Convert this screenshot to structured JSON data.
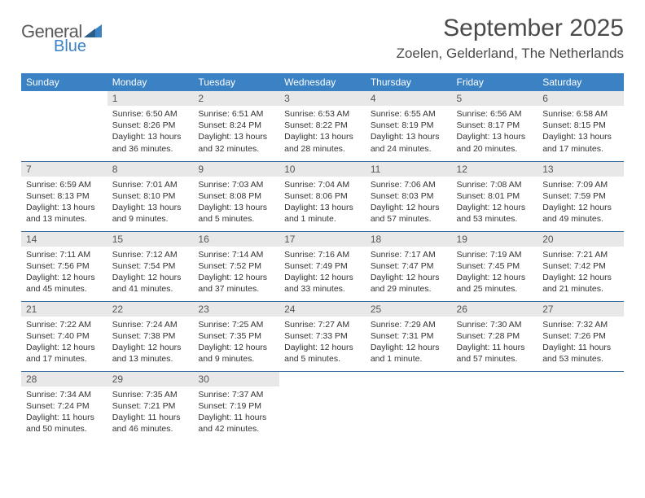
{
  "brand": {
    "word1": "General",
    "word2": "Blue",
    "color_blue": "#3b82c4",
    "color_gray": "#5a5a5a"
  },
  "title": "September 2025",
  "location": "Zoelen, Gelderland, The Netherlands",
  "header_bg": "#3b82c4",
  "daynum_bg": "#e8e8e8",
  "border_color": "#3b6fa0",
  "weekdays": [
    "Sunday",
    "Monday",
    "Tuesday",
    "Wednesday",
    "Thursday",
    "Friday",
    "Saturday"
  ],
  "weeks": [
    [
      null,
      {
        "n": "1",
        "sr": "Sunrise: 6:50 AM",
        "ss": "Sunset: 8:26 PM",
        "dl": "Daylight: 13 hours and 36 minutes."
      },
      {
        "n": "2",
        "sr": "Sunrise: 6:51 AM",
        "ss": "Sunset: 8:24 PM",
        "dl": "Daylight: 13 hours and 32 minutes."
      },
      {
        "n": "3",
        "sr": "Sunrise: 6:53 AM",
        "ss": "Sunset: 8:22 PM",
        "dl": "Daylight: 13 hours and 28 minutes."
      },
      {
        "n": "4",
        "sr": "Sunrise: 6:55 AM",
        "ss": "Sunset: 8:19 PM",
        "dl": "Daylight: 13 hours and 24 minutes."
      },
      {
        "n": "5",
        "sr": "Sunrise: 6:56 AM",
        "ss": "Sunset: 8:17 PM",
        "dl": "Daylight: 13 hours and 20 minutes."
      },
      {
        "n": "6",
        "sr": "Sunrise: 6:58 AM",
        "ss": "Sunset: 8:15 PM",
        "dl": "Daylight: 13 hours and 17 minutes."
      }
    ],
    [
      {
        "n": "7",
        "sr": "Sunrise: 6:59 AM",
        "ss": "Sunset: 8:13 PM",
        "dl": "Daylight: 13 hours and 13 minutes."
      },
      {
        "n": "8",
        "sr": "Sunrise: 7:01 AM",
        "ss": "Sunset: 8:10 PM",
        "dl": "Daylight: 13 hours and 9 minutes."
      },
      {
        "n": "9",
        "sr": "Sunrise: 7:03 AM",
        "ss": "Sunset: 8:08 PM",
        "dl": "Daylight: 13 hours and 5 minutes."
      },
      {
        "n": "10",
        "sr": "Sunrise: 7:04 AM",
        "ss": "Sunset: 8:06 PM",
        "dl": "Daylight: 13 hours and 1 minute."
      },
      {
        "n": "11",
        "sr": "Sunrise: 7:06 AM",
        "ss": "Sunset: 8:03 PM",
        "dl": "Daylight: 12 hours and 57 minutes."
      },
      {
        "n": "12",
        "sr": "Sunrise: 7:08 AM",
        "ss": "Sunset: 8:01 PM",
        "dl": "Daylight: 12 hours and 53 minutes."
      },
      {
        "n": "13",
        "sr": "Sunrise: 7:09 AM",
        "ss": "Sunset: 7:59 PM",
        "dl": "Daylight: 12 hours and 49 minutes."
      }
    ],
    [
      {
        "n": "14",
        "sr": "Sunrise: 7:11 AM",
        "ss": "Sunset: 7:56 PM",
        "dl": "Daylight: 12 hours and 45 minutes."
      },
      {
        "n": "15",
        "sr": "Sunrise: 7:12 AM",
        "ss": "Sunset: 7:54 PM",
        "dl": "Daylight: 12 hours and 41 minutes."
      },
      {
        "n": "16",
        "sr": "Sunrise: 7:14 AM",
        "ss": "Sunset: 7:52 PM",
        "dl": "Daylight: 12 hours and 37 minutes."
      },
      {
        "n": "17",
        "sr": "Sunrise: 7:16 AM",
        "ss": "Sunset: 7:49 PM",
        "dl": "Daylight: 12 hours and 33 minutes."
      },
      {
        "n": "18",
        "sr": "Sunrise: 7:17 AM",
        "ss": "Sunset: 7:47 PM",
        "dl": "Daylight: 12 hours and 29 minutes."
      },
      {
        "n": "19",
        "sr": "Sunrise: 7:19 AM",
        "ss": "Sunset: 7:45 PM",
        "dl": "Daylight: 12 hours and 25 minutes."
      },
      {
        "n": "20",
        "sr": "Sunrise: 7:21 AM",
        "ss": "Sunset: 7:42 PM",
        "dl": "Daylight: 12 hours and 21 minutes."
      }
    ],
    [
      {
        "n": "21",
        "sr": "Sunrise: 7:22 AM",
        "ss": "Sunset: 7:40 PM",
        "dl": "Daylight: 12 hours and 17 minutes."
      },
      {
        "n": "22",
        "sr": "Sunrise: 7:24 AM",
        "ss": "Sunset: 7:38 PM",
        "dl": "Daylight: 12 hours and 13 minutes."
      },
      {
        "n": "23",
        "sr": "Sunrise: 7:25 AM",
        "ss": "Sunset: 7:35 PM",
        "dl": "Daylight: 12 hours and 9 minutes."
      },
      {
        "n": "24",
        "sr": "Sunrise: 7:27 AM",
        "ss": "Sunset: 7:33 PM",
        "dl": "Daylight: 12 hours and 5 minutes."
      },
      {
        "n": "25",
        "sr": "Sunrise: 7:29 AM",
        "ss": "Sunset: 7:31 PM",
        "dl": "Daylight: 12 hours and 1 minute."
      },
      {
        "n": "26",
        "sr": "Sunrise: 7:30 AM",
        "ss": "Sunset: 7:28 PM",
        "dl": "Daylight: 11 hours and 57 minutes."
      },
      {
        "n": "27",
        "sr": "Sunrise: 7:32 AM",
        "ss": "Sunset: 7:26 PM",
        "dl": "Daylight: 11 hours and 53 minutes."
      }
    ],
    [
      {
        "n": "28",
        "sr": "Sunrise: 7:34 AM",
        "ss": "Sunset: 7:24 PM",
        "dl": "Daylight: 11 hours and 50 minutes."
      },
      {
        "n": "29",
        "sr": "Sunrise: 7:35 AM",
        "ss": "Sunset: 7:21 PM",
        "dl": "Daylight: 11 hours and 46 minutes."
      },
      {
        "n": "30",
        "sr": "Sunrise: 7:37 AM",
        "ss": "Sunset: 7:19 PM",
        "dl": "Daylight: 11 hours and 42 minutes."
      },
      null,
      null,
      null,
      null
    ]
  ]
}
